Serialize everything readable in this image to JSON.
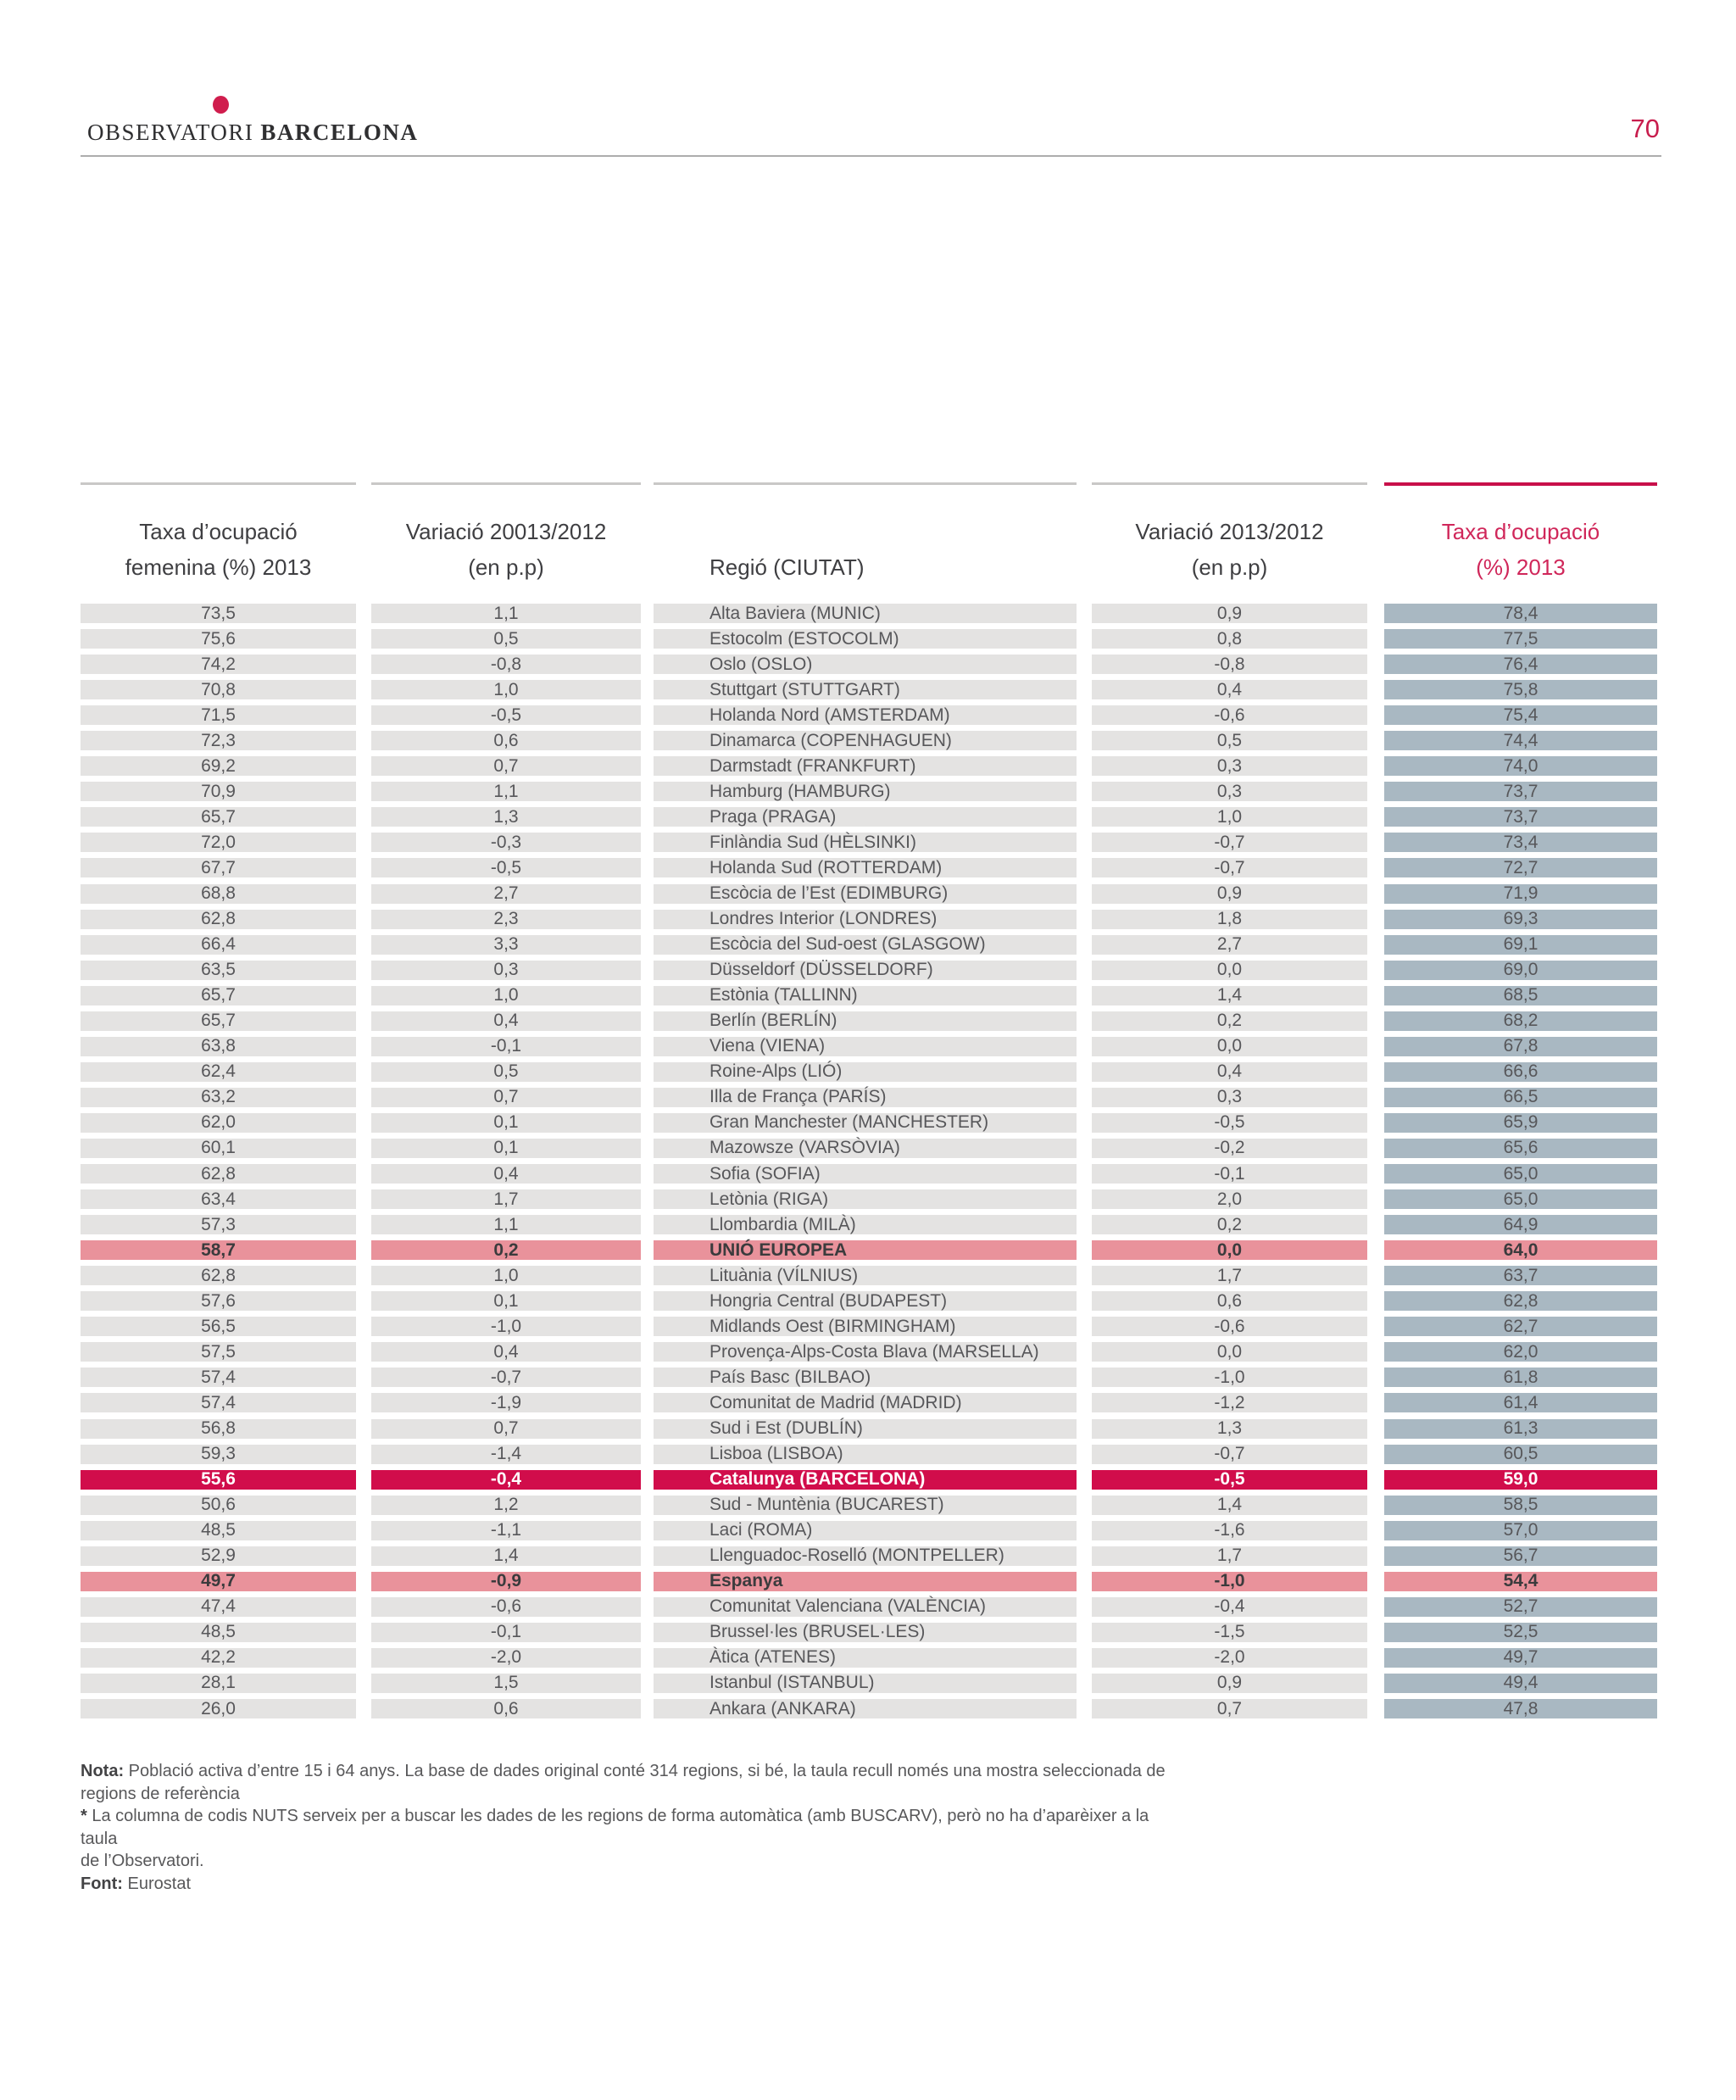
{
  "page": {
    "number": "70"
  },
  "logo": {
    "part1": "observatori",
    "part2": "barcelona"
  },
  "colors": {
    "accent_crimson": "#c81e4e",
    "row_highlight_pink": "#e9929b",
    "row_highlight_crimson": "#d10d4b",
    "bar_gray": "#e4e3e2",
    "bar_blue": "#a9b8c2"
  },
  "table": {
    "headers": {
      "fem": {
        "line1": "Taxa d’ocupació",
        "line2": "femenina (%) 2013"
      },
      "var1": {
        "line1": "Variació 20013/2012",
        "line2": "(en p.p)"
      },
      "region": {
        "line1": "Regió (CIUTAT)"
      },
      "var2": {
        "line1": "Variació 2013/2012",
        "line2": "(en p.p)"
      },
      "taxa": {
        "line1": "Taxa d’ocupació",
        "line2": "(%) 2013"
      }
    },
    "rows": [
      {
        "fem": "73,5",
        "var1": "1,1",
        "region": "Alta Baviera (MUNIC)",
        "var2": "0,9",
        "taxa": "78,4"
      },
      {
        "fem": "75,6",
        "var1": "0,5",
        "region": "Estocolm (ESTOCOLM)",
        "var2": "0,8",
        "taxa": "77,5"
      },
      {
        "fem": "74,2",
        "var1": "-0,8",
        "region": "Oslo (OSLO)",
        "var2": "-0,8",
        "taxa": "76,4"
      },
      {
        "fem": "70,8",
        "var1": "1,0",
        "region": "Stuttgart (STUTTGART)",
        "var2": "0,4",
        "taxa": "75,8"
      },
      {
        "fem": "71,5",
        "var1": "-0,5",
        "region": "Holanda Nord (AMSTERDAM)",
        "var2": "-0,6",
        "taxa": "75,4"
      },
      {
        "fem": "72,3",
        "var1": "0,6",
        "region": "Dinamarca (COPENHAGUEN)",
        "var2": "0,5",
        "taxa": "74,4"
      },
      {
        "fem": "69,2",
        "var1": "0,7",
        "region": "Darmstadt (FRANKFURT)",
        "var2": "0,3",
        "taxa": "74,0"
      },
      {
        "fem": "70,9",
        "var1": "1,1",
        "region": "Hamburg (HAMBURG)",
        "var2": "0,3",
        "taxa": "73,7"
      },
      {
        "fem": "65,7",
        "var1": "1,3",
        "region": "Praga (PRAGA)",
        "var2": "1,0",
        "taxa": "73,7"
      },
      {
        "fem": "72,0",
        "var1": "-0,3",
        "region": "Finlàndia Sud (HÈLSINKI)",
        "var2": "-0,7",
        "taxa": "73,4"
      },
      {
        "fem": "67,7",
        "var1": "-0,5",
        "region": "Holanda Sud (ROTTERDAM)",
        "var2": "-0,7",
        "taxa": "72,7"
      },
      {
        "fem": "68,8",
        "var1": "2,7",
        "region": "Escòcia de l’Est (EDIMBURG)",
        "var2": "0,9",
        "taxa": "71,9"
      },
      {
        "fem": "62,8",
        "var1": "2,3",
        "region": "Londres Interior (LONDRES)",
        "var2": "1,8",
        "taxa": "69,3"
      },
      {
        "fem": "66,4",
        "var1": "3,3",
        "region": "Escòcia del Sud-oest (GLASGOW)",
        "var2": "2,7",
        "taxa": "69,1"
      },
      {
        "fem": "63,5",
        "var1": "0,3",
        "region": "Düsseldorf (DÜSSELDORF)",
        "var2": "0,0",
        "taxa": "69,0"
      },
      {
        "fem": "65,7",
        "var1": "1,0",
        "region": "Estònia (TALLINN)",
        "var2": "1,4",
        "taxa": "68,5"
      },
      {
        "fem": "65,7",
        "var1": "0,4",
        "region": "Berlín (BERLÍN)",
        "var2": "0,2",
        "taxa": "68,2"
      },
      {
        "fem": "63,8",
        "var1": "-0,1",
        "region": "Viena (VIENA)",
        "var2": "0,0",
        "taxa": "67,8"
      },
      {
        "fem": "62,4",
        "var1": "0,5",
        "region": "Roine-Alps (LIÓ)",
        "var2": "0,4",
        "taxa": "66,6"
      },
      {
        "fem": "63,2",
        "var1": "0,7",
        "region": "Illa de França (PARÍS)",
        "var2": "0,3",
        "taxa": "66,5"
      },
      {
        "fem": "62,0",
        "var1": "0,1",
        "region": "Gran Manchester (MANCHESTER)",
        "var2": "-0,5",
        "taxa": "65,9"
      },
      {
        "fem": "60,1",
        "var1": "0,1",
        "region": "Mazowsze (VARSÒVIA)",
        "var2": "-0,2",
        "taxa": "65,6"
      },
      {
        "fem": "62,8",
        "var1": "0,4",
        "region": "Sofia (SOFIA)",
        "var2": "-0,1",
        "taxa": "65,0"
      },
      {
        "fem": "63,4",
        "var1": "1,7",
        "region": "Letònia (RIGA)",
        "var2": "2,0",
        "taxa": "65,0"
      },
      {
        "fem": "57,3",
        "var1": "1,1",
        "region": "Llombardia (MILÀ)",
        "var2": "0,2",
        "taxa": "64,9"
      },
      {
        "fem": "58,7",
        "var1": "0,2",
        "region": "UNIÓ EUROPEA",
        "var2": "0,0",
        "taxa": "64,0",
        "highlight": "pink"
      },
      {
        "fem": "62,8",
        "var1": "1,0",
        "region": "Lituània (VÍLNIUS)",
        "var2": "1,7",
        "taxa": "63,7"
      },
      {
        "fem": "57,6",
        "var1": "0,1",
        "region": "Hongria Central (BUDAPEST)",
        "var2": "0,6",
        "taxa": "62,8"
      },
      {
        "fem": "56,5",
        "var1": "-1,0",
        "region": "Midlands Oest (BIRMINGHAM)",
        "var2": "-0,6",
        "taxa": "62,7"
      },
      {
        "fem": "57,5",
        "var1": "0,4",
        "region": "Provença-Alps-Costa Blava (MARSELLA)",
        "var2": "0,0",
        "taxa": "62,0"
      },
      {
        "fem": "57,4",
        "var1": "-0,7",
        "region": "País Basc (BILBAO)",
        "var2": "-1,0",
        "taxa": "61,8"
      },
      {
        "fem": "57,4",
        "var1": "-1,9",
        "region": "Comunitat de Madrid (MADRID)",
        "var2": "-1,2",
        "taxa": "61,4"
      },
      {
        "fem": "56,8",
        "var1": "0,7",
        "region": "Sud i Est (DUBLÍN)",
        "var2": "1,3",
        "taxa": "61,3"
      },
      {
        "fem": "59,3",
        "var1": "-1,4",
        "region": "Lisboa (LISBOA)",
        "var2": "-0,7",
        "taxa": "60,5"
      },
      {
        "fem": "55,6",
        "var1": "-0,4",
        "region": "Catalunya (BARCELONA)",
        "var2": "-0,5",
        "taxa": "59,0",
        "highlight": "crimson"
      },
      {
        "fem": "50,6",
        "var1": "1,2",
        "region": "Sud - Muntènia (BUCAREST)",
        "var2": "1,4",
        "taxa": "58,5"
      },
      {
        "fem": "48,5",
        "var1": "-1,1",
        "region": "Laci (ROMA)",
        "var2": "-1,6",
        "taxa": "57,0"
      },
      {
        "fem": "52,9",
        "var1": "1,4",
        "region": "Llenguadoc-Roselló (MONTPELLER)",
        "var2": "1,7",
        "taxa": "56,7"
      },
      {
        "fem": "49,7",
        "var1": "-0,9",
        "region": "Espanya",
        "var2": "-1,0",
        "taxa": "54,4",
        "highlight": "pink"
      },
      {
        "fem": "47,4",
        "var1": "-0,6",
        "region": "Comunitat Valenciana (VALÈNCIA)",
        "var2": "-0,4",
        "taxa": "52,7"
      },
      {
        "fem": "48,5",
        "var1": "-0,1",
        "region": "Brussel·les (BRUSEL·LES)",
        "var2": "-1,5",
        "taxa": "52,5"
      },
      {
        "fem": "42,2",
        "var1": "-2,0",
        "region": "Àtica (ATENES)",
        "var2": "-2,0",
        "taxa": "49,7"
      },
      {
        "fem": "28,1",
        "var1": "1,5",
        "region": "Istanbul (ISTANBUL)",
        "var2": "0,9",
        "taxa": "49,4"
      },
      {
        "fem": "26,0",
        "var1": "0,6",
        "region": "Ankara (ANKARA)",
        "var2": "0,7",
        "taxa": "47,8"
      }
    ]
  },
  "notes": {
    "nota_label": "Nota:",
    "nota_line1": "Població activa d’entre 15 i 64 anys. La base de dades original conté 314 regions, si bé, la taula recull només una mostra seleccionada de",
    "nota_line2": "regions de referència",
    "star_label": "*",
    "star_line1": "La columna de codis NUTS serveix per a buscar les dades de les regions de forma automàtica (amb BUSCARV), però no ha d’aparèixer a la taula",
    "star_line2": "de l’Observatori.",
    "font_label": "Font:",
    "font_text": "Eurostat"
  }
}
